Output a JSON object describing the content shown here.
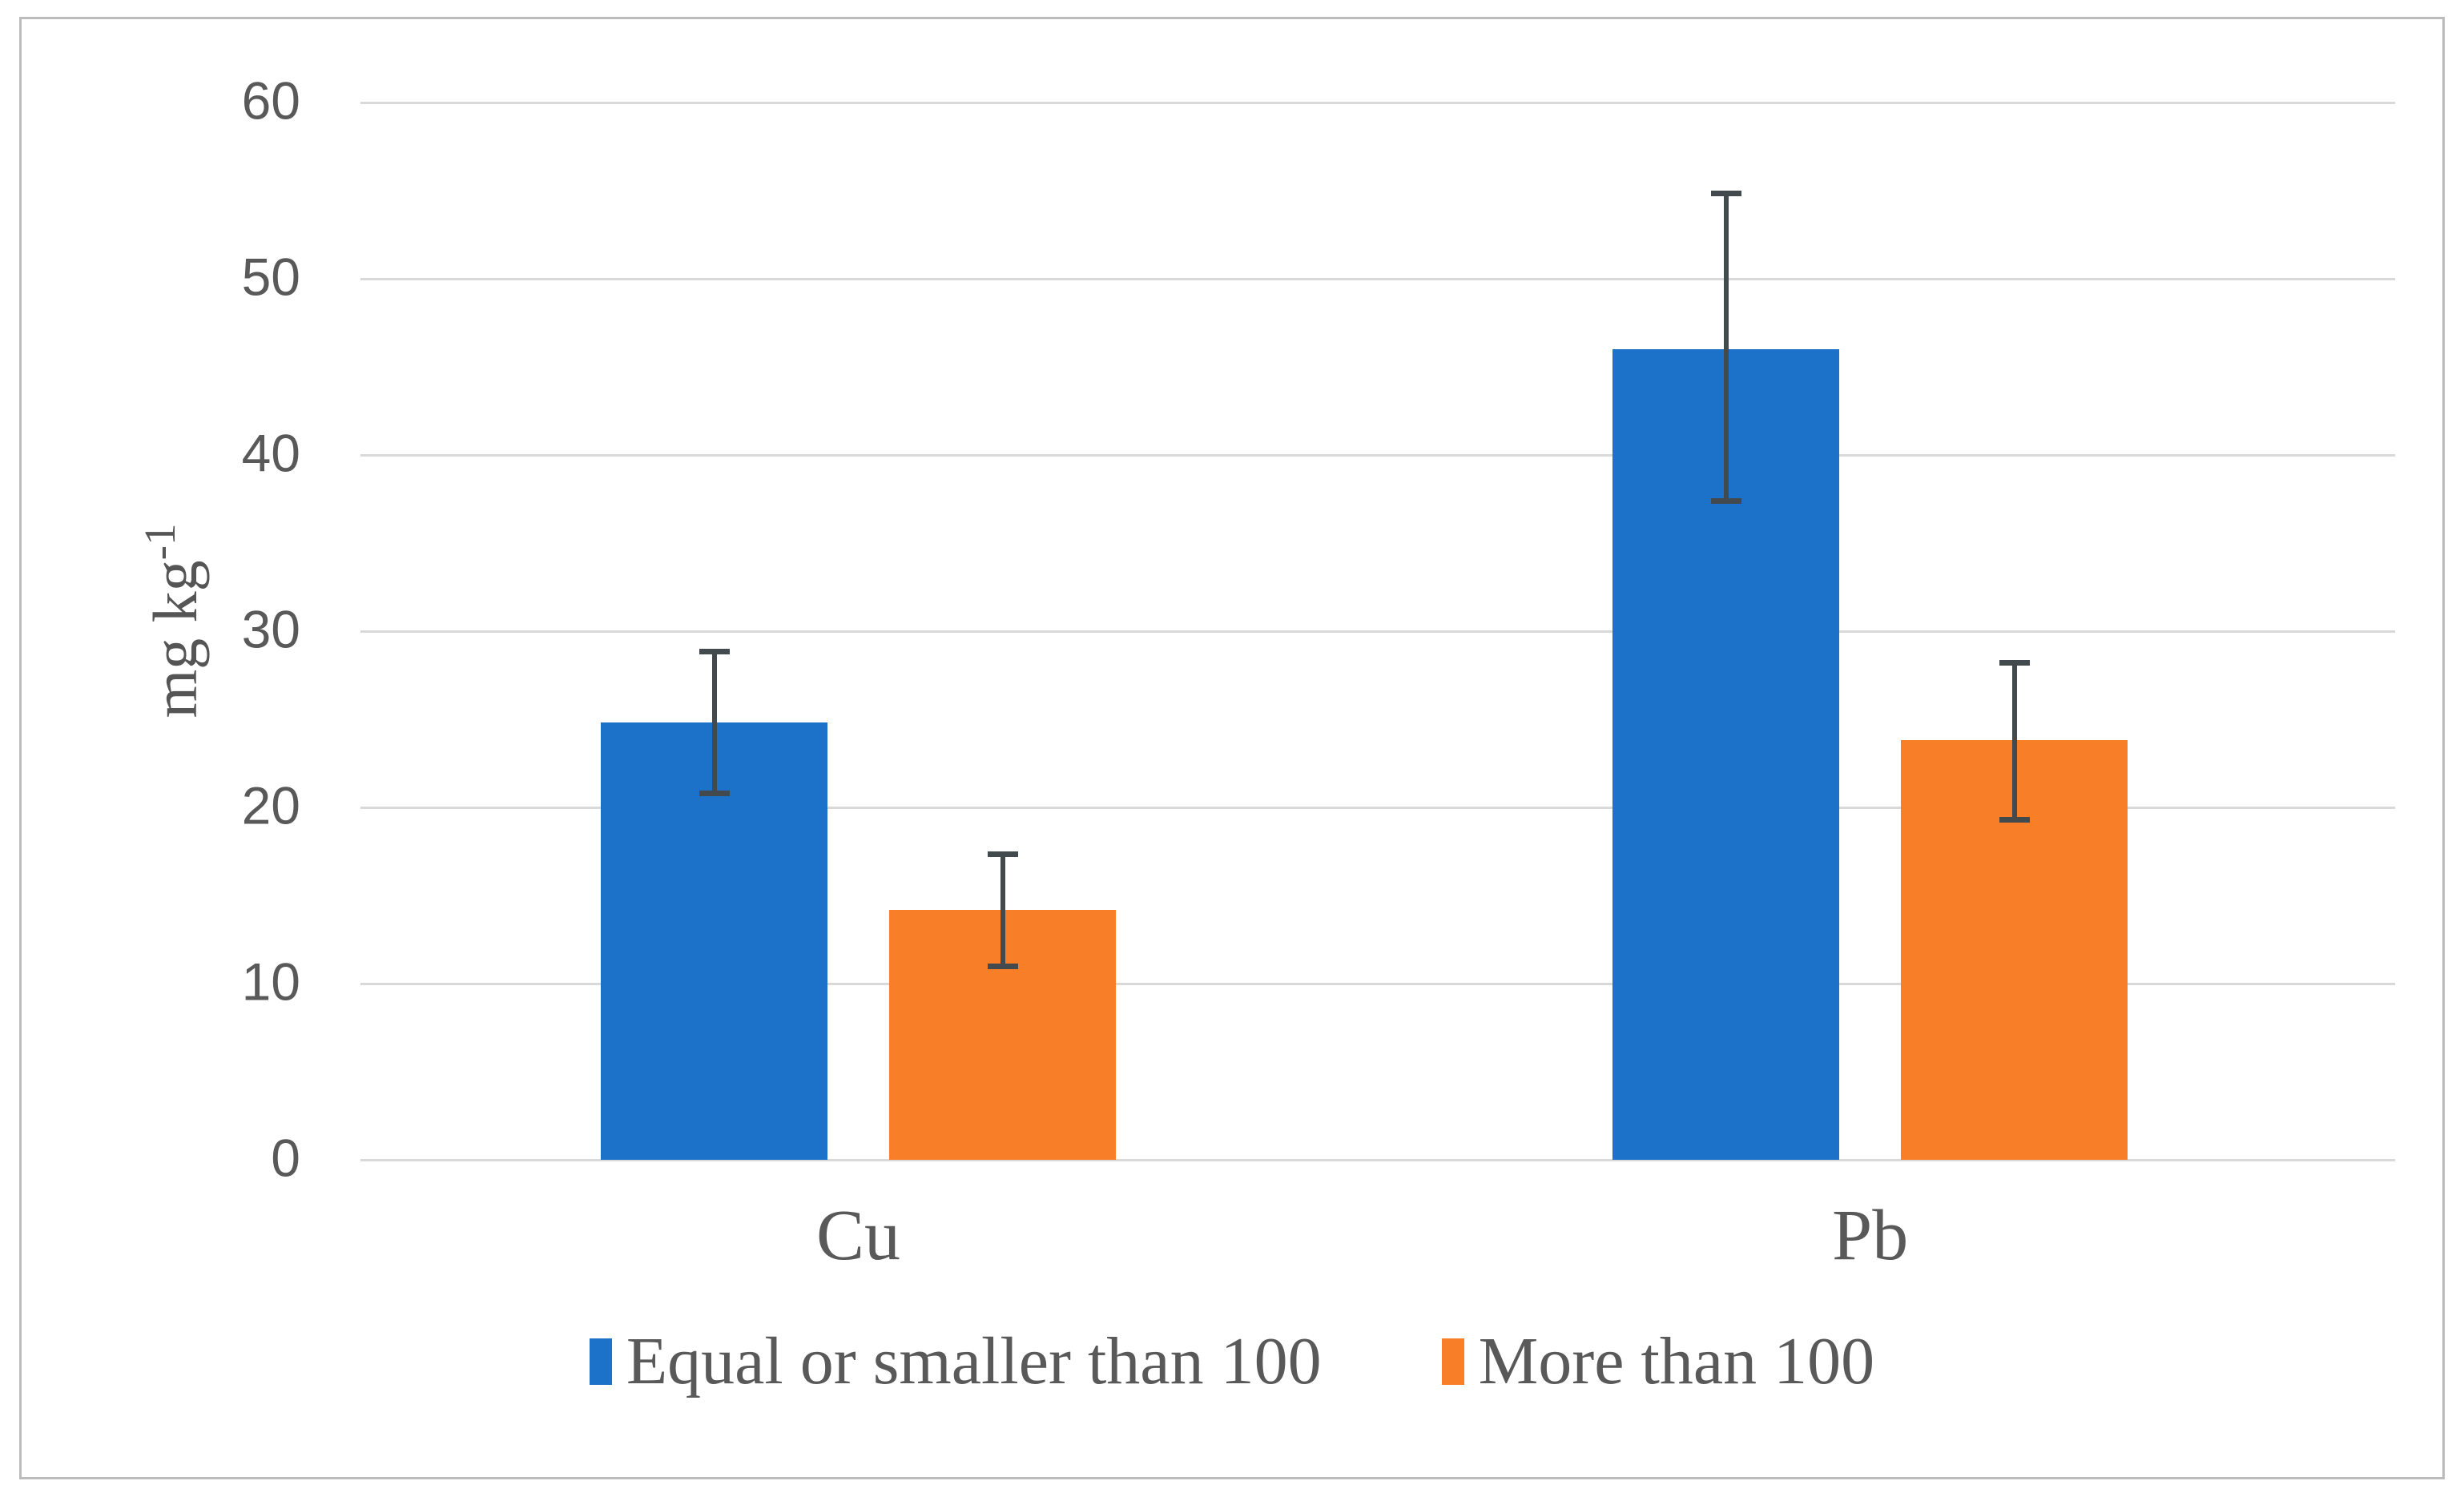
{
  "figure": {
    "background": "#FFFFFF",
    "border_color": "#BCBCBC"
  },
  "chart_data": {
    "type": "bar",
    "categories": [
      "Cu",
      "Pb"
    ],
    "series": [
      {
        "name": "Equal or smaller than 100",
        "color": "#1C72C8",
        "values": [
          24.8,
          46.0
        ],
        "error_plus": [
          4.0,
          8.8
        ],
        "error_minus": [
          4.0,
          8.6
        ]
      },
      {
        "name": "More than 100",
        "color": "#F97E28",
        "values": [
          14.2,
          23.8
        ],
        "error_plus": [
          3.1,
          4.4
        ],
        "error_minus": [
          3.2,
          4.5
        ]
      }
    ],
    "title": "",
    "xlabel": "",
    "ylabel": "mg kg-1",
    "ylabel_parts": {
      "base": "mg kg",
      "sup": "-1"
    },
    "ylim": [
      0,
      60
    ],
    "yticks": [
      0,
      10,
      20,
      30,
      40,
      50,
      60
    ],
    "grid": true,
    "gridline_color": "#D9D9D9",
    "error_bars": true,
    "error_bar_color": "#424A4E",
    "tick_text_color": "#595959",
    "label_text_color": "#595959",
    "legend_position": "bottom"
  }
}
